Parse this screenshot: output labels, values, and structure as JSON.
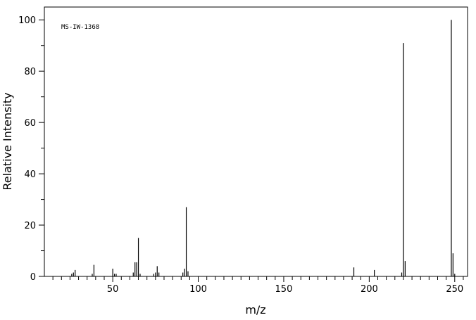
{
  "chart_data": {
    "type": "bar",
    "annotation": "MS-IW-1368",
    "xlabel": "m/z",
    "ylabel": "Relative Intensity",
    "x": [
      26,
      27,
      28,
      38,
      39,
      50,
      51,
      52,
      62,
      63,
      64,
      65,
      66,
      74,
      75,
      76,
      77,
      91,
      92,
      93,
      94,
      191,
      203,
      219,
      220,
      221,
      248,
      249,
      250
    ],
    "values": [
      1,
      1.5,
      2.5,
      1,
      4.5,
      3,
      1,
      1,
      1.5,
      5.5,
      5.5,
      15,
      1,
      1,
      1.5,
      4,
      1.5,
      1.5,
      3,
      27,
      2,
      3.5,
      2.5,
      1.5,
      91,
      6,
      100,
      9,
      1
    ],
    "color": "#000000",
    "xlim": [
      10,
      257.5
    ],
    "ylim": [
      0,
      105
    ],
    "xticks": [
      50,
      100,
      150,
      200,
      250
    ],
    "yticks": [
      0,
      20,
      40,
      60,
      80,
      100
    ],
    "xminorticks": [
      15,
      20,
      25,
      30,
      35,
      40,
      45,
      55,
      60,
      65,
      70,
      75,
      80,
      85,
      90,
      95,
      105,
      110,
      115,
      120,
      125,
      130,
      135,
      140,
      145,
      155,
      160,
      165,
      170,
      175,
      180,
      185,
      190,
      195,
      205,
      210,
      215,
      220,
      225,
      230,
      235,
      240,
      245,
      255
    ],
    "yminorticks": [
      10,
      30,
      50,
      70,
      90
    ]
  }
}
